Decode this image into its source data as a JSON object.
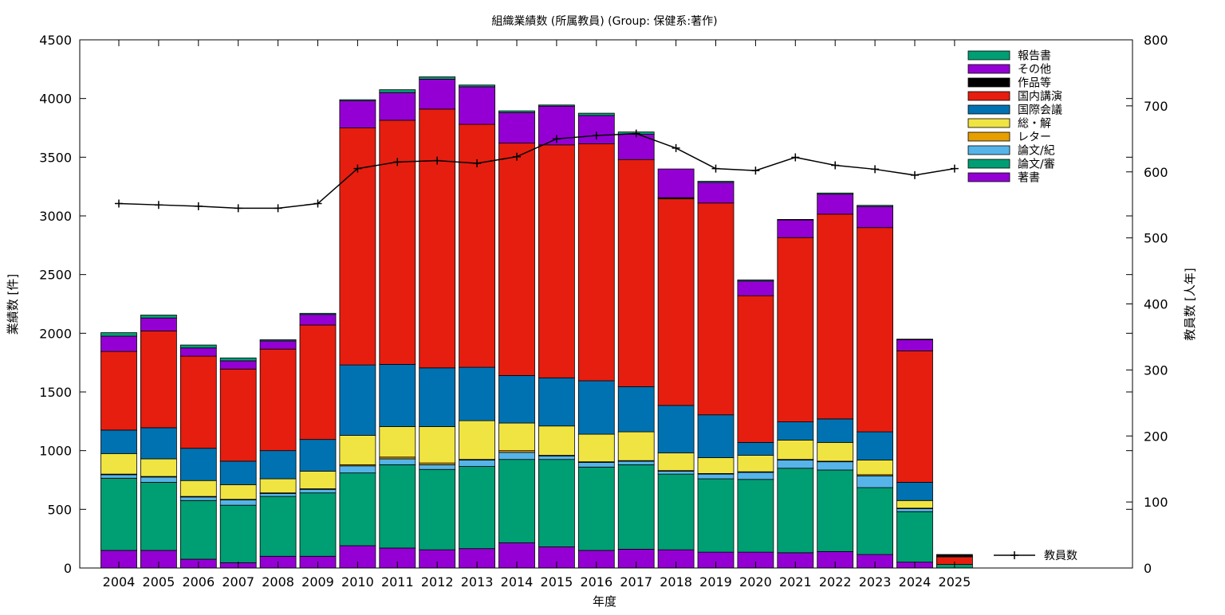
{
  "chart_data": {
    "type": "bar",
    "stacked": true,
    "title": "組織業績数 (所属教員) (Group: 保健系:著作)",
    "xlabel": "年度",
    "ylabel": "業績数 [件]",
    "y2label": "教員数 [人年]",
    "ylim": [
      0,
      4500
    ],
    "y2lim": [
      0,
      800
    ],
    "yticks": [
      "0",
      "500",
      "1000",
      "1500",
      "2000",
      "2500",
      "3000",
      "3500",
      "4000",
      "4500"
    ],
    "y2ticks": [
      "0",
      "100",
      "200",
      "300",
      "400",
      "500",
      "600",
      "700",
      "800"
    ],
    "categories": [
      "2004",
      "2005",
      "2006",
      "2007",
      "2008",
      "2009",
      "2010",
      "2011",
      "2012",
      "2013",
      "2014",
      "2015",
      "2016",
      "2017",
      "2018",
      "2019",
      "2020",
      "2021",
      "2022",
      "2023",
      "2024",
      "2025"
    ],
    "grid": false,
    "legend_position": "top-right",
    "series": [
      {
        "name": "著書",
        "color": "#9400d3",
        "values": [
          150,
          150,
          75,
          45,
          100,
          100,
          190,
          170,
          155,
          165,
          215,
          180,
          150,
          160,
          155,
          135,
          135,
          130,
          140,
          115,
          50,
          0
        ]
      },
      {
        "name": "論文/審",
        "color": "#009e73",
        "values": [
          615,
          580,
          500,
          490,
          510,
          540,
          620,
          710,
          685,
          700,
          710,
          745,
          710,
          720,
          645,
          625,
          620,
          720,
          695,
          570,
          430,
          30
        ]
      },
      {
        "name": "論文/紀",
        "color": "#56b4e9",
        "values": [
          30,
          45,
          30,
          45,
          25,
          30,
          60,
          50,
          40,
          55,
          60,
          30,
          40,
          30,
          25,
          40,
          60,
          70,
          70,
          100,
          25,
          0
        ]
      },
      {
        "name": "レター",
        "color": "#e69f00",
        "values": [
          5,
          5,
          5,
          5,
          5,
          5,
          10,
          15,
          15,
          5,
          15,
          5,
          5,
          5,
          5,
          5,
          5,
          5,
          5,
          10,
          5,
          0
        ]
      },
      {
        "name": "総・解",
        "color": "#f0e442",
        "values": [
          175,
          150,
          135,
          125,
          120,
          150,
          250,
          260,
          310,
          330,
          235,
          250,
          235,
          245,
          150,
          135,
          140,
          165,
          160,
          125,
          65,
          0
        ]
      },
      {
        "name": "国際会議",
        "color": "#0072b2",
        "values": [
          200,
          265,
          275,
          200,
          240,
          270,
          600,
          530,
          500,
          455,
          405,
          410,
          455,
          385,
          405,
          365,
          110,
          155,
          200,
          240,
          155,
          0
        ]
      },
      {
        "name": "国内講演",
        "color": "#e51e10",
        "values": [
          670,
          825,
          785,
          785,
          865,
          975,
          2020,
          2080,
          2205,
          2070,
          1980,
          1985,
          2020,
          1935,
          1760,
          1805,
          1250,
          1570,
          1745,
          1740,
          1120,
          65
        ]
      },
      {
        "name": "作品等",
        "color": "#000000",
        "values": [
          0,
          0,
          0,
          0,
          0,
          0,
          0,
          0,
          0,
          0,
          0,
          0,
          0,
          0,
          10,
          0,
          0,
          0,
          0,
          0,
          0,
          20
        ]
      },
      {
        "name": "その他",
        "color": "#9400d3",
        "values": [
          130,
          110,
          70,
          70,
          70,
          90,
          230,
          235,
          255,
          320,
          260,
          330,
          240,
          215,
          245,
          175,
          125,
          150,
          170,
          180,
          95,
          0
        ]
      },
      {
        "name": "報告書",
        "color": "#009e73",
        "values": [
          30,
          25,
          25,
          25,
          10,
          10,
          10,
          25,
          20,
          15,
          15,
          10,
          20,
          20,
          0,
          10,
          10,
          5,
          10,
          10,
          5,
          0
        ]
      }
    ],
    "line_series": {
      "name": "教員数",
      "color": "#000000",
      "axis": "y2",
      "categories": [
        "2004",
        "2005",
        "2006",
        "2007",
        "2008",
        "2009",
        "2010",
        "2011",
        "2012",
        "2013",
        "2014",
        "2015",
        "2016",
        "2017",
        "2018",
        "2019",
        "2020",
        "2021",
        "2022",
        "2023",
        "2024",
        "2025"
      ],
      "values": [
        552,
        550,
        548,
        545,
        545,
        552,
        605,
        615,
        617,
        613,
        623,
        650,
        655,
        658,
        636,
        605,
        602,
        622,
        610,
        604,
        595,
        605
      ]
    }
  }
}
